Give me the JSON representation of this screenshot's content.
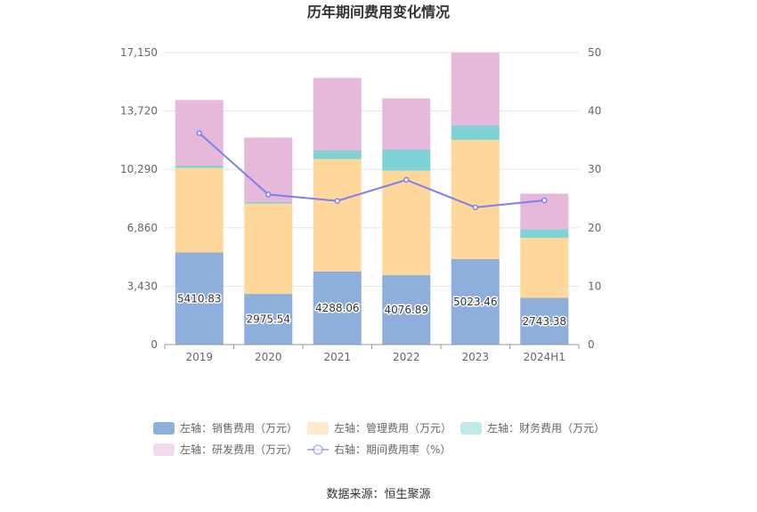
{
  "chart_data": {
    "type": "bar",
    "title": "历年期间费用变化情况",
    "categories": [
      "2019",
      "2020",
      "2021",
      "2022",
      "2023",
      "2024H1"
    ],
    "left_axis": {
      "ticks": [
        "0",
        "3,430",
        "6,860",
        "10,290",
        "13,720",
        "17,150"
      ],
      "ylim": [
        0,
        17150
      ]
    },
    "right_axis": {
      "ticks": [
        "0",
        "10",
        "20",
        "30",
        "40",
        "50"
      ],
      "ylim": [
        0,
        50
      ]
    },
    "series": [
      {
        "name": "左轴：销售费用（万元）",
        "type": "bar",
        "stack": "total",
        "color": "#8eaedb",
        "values": [
          5410.83,
          2975.54,
          4288.06,
          4076.89,
          5023.46,
          2743.38
        ],
        "labels": [
          "5410.83",
          "2975.54",
          "4288.06",
          "4076.89",
          "5023.46",
          "2743.38"
        ]
      },
      {
        "name": "左轴：管理费用（万元）",
        "type": "bar",
        "stack": "total",
        "color": "#fed89a",
        "values": [
          4960,
          5310,
          6610,
          6140,
          6990,
          3530
        ]
      },
      {
        "name": "左轴：财务费用（万元）",
        "type": "bar",
        "stack": "total",
        "color": "#7fd3d6",
        "values": [
          140,
          90,
          500,
          1250,
          850,
          490
        ]
      },
      {
        "name": "左轴：研发费用（万元）",
        "type": "bar",
        "stack": "total",
        "color": "#e6b8da",
        "values": [
          3850,
          3780,
          4260,
          2990,
          4280,
          2100
        ]
      },
      {
        "name": "右轴：期间费用率（%）",
        "type": "line",
        "axis": "right",
        "color": "#7b7ff0",
        "values": [
          36.2,
          25.7,
          24.6,
          28.2,
          23.5,
          24.7
        ]
      }
    ],
    "legend_placement": "bottom",
    "grid": true
  },
  "source": "数据来源：恒生聚源"
}
